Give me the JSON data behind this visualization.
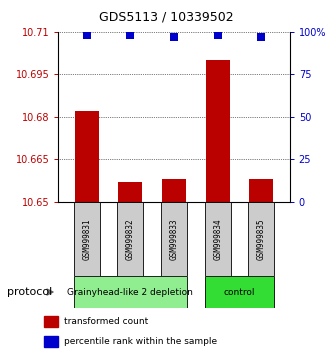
{
  "title": "GDS5113 / 10339502",
  "samples": [
    "GSM999831",
    "GSM999832",
    "GSM999833",
    "GSM999834",
    "GSM999835"
  ],
  "red_values": [
    10.682,
    10.657,
    10.658,
    10.7,
    10.658
  ],
  "blue_values": [
    98,
    98,
    97,
    98,
    97
  ],
  "ylim_left": [
    10.65,
    10.71
  ],
  "ylim_right": [
    0,
    100
  ],
  "yticks_left": [
    10.65,
    10.665,
    10.68,
    10.695,
    10.71
  ],
  "ytick_labels_left": [
    "10.65",
    "10.665",
    "10.68",
    "10.695",
    "10.71"
  ],
  "yticks_right": [
    0,
    25,
    50,
    75,
    100
  ],
  "ytick_labels_right": [
    "0",
    "25",
    "50",
    "75",
    "100%"
  ],
  "groups": [
    {
      "label": "Grainyhead-like 2 depletion",
      "indices": [
        0,
        1,
        2
      ],
      "color": "#90ee90"
    },
    {
      "label": "control",
      "indices": [
        3,
        4
      ],
      "color": "#33dd33"
    }
  ],
  "bar_color": "#bb0000",
  "dot_color": "#0000cc",
  "background_color": "#ffffff",
  "protocol_label": "protocol",
  "legend_items": [
    {
      "color": "#bb0000",
      "label": "transformed count",
      "marker": "s"
    },
    {
      "color": "#0000cc",
      "label": "percentile rank within the sample",
      "marker": "s"
    }
  ],
  "bar_width": 0.55,
  "dot_size": 28,
  "x_positions": [
    1,
    2,
    3,
    4,
    5
  ],
  "title_fontsize": 9,
  "tick_fontsize": 7,
  "sample_fontsize": 5.5,
  "group_fontsize": 6.5,
  "legend_fontsize": 6.5,
  "protocol_fontsize": 8
}
